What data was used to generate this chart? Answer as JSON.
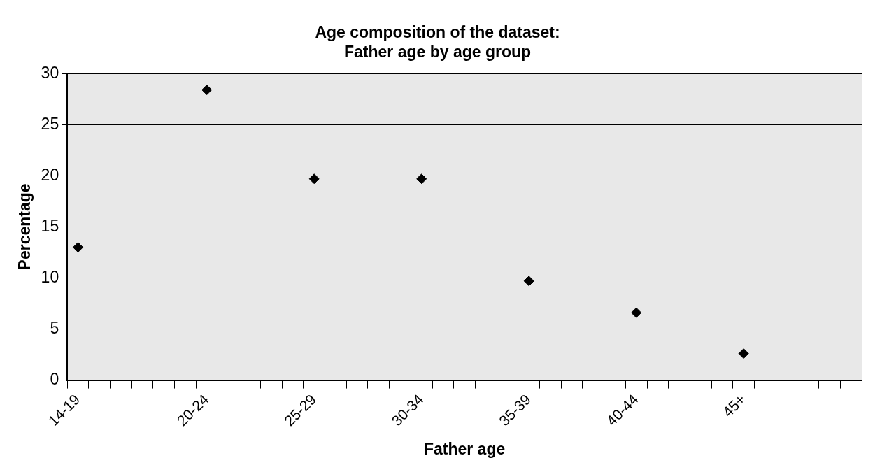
{
  "chart_data": {
    "type": "scatter",
    "title": [
      "Age composition of the dataset:",
      "Father age by age group"
    ],
    "xlabel": "Father age",
    "ylabel": "Percentage",
    "categories": [
      "14-19",
      null,
      null,
      null,
      null,
      null,
      "20-24",
      null,
      null,
      null,
      null,
      "25-29",
      null,
      null,
      null,
      null,
      "30-34",
      null,
      null,
      null,
      null,
      "35-39",
      null,
      null,
      null,
      null,
      "40-44",
      null,
      null,
      null,
      null,
      "45+",
      null,
      null,
      null,
      null,
      null
    ],
    "series": [
      {
        "color": "#000000",
        "values": [
          13.0,
          null,
          null,
          null,
          null,
          null,
          28.4,
          null,
          null,
          null,
          null,
          19.7,
          null,
          null,
          null,
          null,
          19.7,
          null,
          null,
          null,
          null,
          9.7,
          null,
          null,
          null,
          null,
          6.6,
          null,
          null,
          null,
          null,
          2.6,
          null,
          null,
          null,
          null,
          null
        ]
      }
    ],
    "ylim": [
      0,
      30
    ],
    "yticks": [
      0,
      5,
      10,
      15,
      20,
      25,
      30
    ],
    "grid": "y",
    "marker": "diamond"
  }
}
